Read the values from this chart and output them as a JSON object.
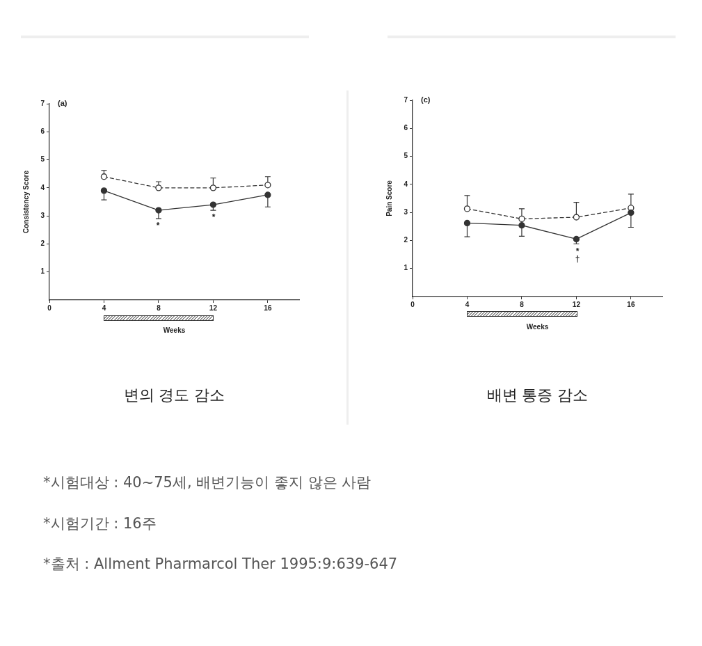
{
  "chart_data": [
    {
      "type": "line",
      "title": "(a)",
      "xlabel": "Weeks",
      "ylabel": "Consistency Score",
      "x": [
        4,
        8,
        12,
        16
      ],
      "series": [
        {
          "color": "#333333",
          "line_style": "solid",
          "values": [
            3.9,
            3.2,
            3.4,
            3.75
          ],
          "errors": [
            [
              3.57,
              3.9
            ],
            [
              2.9,
              3.2
            ],
            [
              3.2,
              3.4
            ],
            [
              3.32,
              3.75
            ]
          ]
        },
        {
          "color": "#333333",
          "line_style": "dashed",
          "values": [
            4.4,
            4.0,
            4.0,
            4.1
          ],
          "errors": [
            [
              4.4,
              4.62
            ],
            [
              4.0,
              4.22
            ],
            [
              4.0,
              4.35
            ],
            [
              4.1,
              4.4
            ]
          ]
        }
      ],
      "xlim": [
        0,
        18.3
      ],
      "xticks": [
        0,
        4,
        8,
        12,
        16
      ],
      "ylim": [
        0,
        7
      ],
      "yticks": [
        1,
        2,
        3,
        4,
        5,
        6,
        7
      ],
      "marker": "circle",
      "grid": false,
      "legend": false,
      "annotations": [
        "변의 경도 감소",
        "*",
        "*",
        "*시험대상 : 40~75세, 배변기능이 좋지 않은 사람",
        "*시험기간 : 16주",
        "*출처 : Allment Pharmarcol Ther 1995:9:639-647"
      ]
    },
    {
      "type": "line",
      "title": "(c)",
      "xlabel": "Weeks",
      "ylabel": "Pain Score",
      "x": [
        4,
        8,
        12,
        16
      ],
      "series": [
        {
          "color": "#333333",
          "line_style": "solid",
          "values": [
            2.62,
            2.54,
            2.05,
            2.99
          ],
          "errors": [
            [
              2.13,
              2.62
            ],
            [
              2.15,
              2.54
            ],
            [
              1.88,
              2.05
            ],
            [
              2.47,
              2.99
            ]
          ]
        },
        {
          "color": "#333333",
          "line_style": "dashed",
          "values": [
            3.13,
            2.77,
            2.83,
            3.16
          ],
          "errors": [
            [
              3.13,
              3.6
            ],
            [
              2.77,
              3.13
            ],
            [
              2.83,
              3.36
            ],
            [
              3.16,
              3.65
            ]
          ]
        }
      ],
      "xlim": [
        0,
        18.3
      ],
      "xticks": [
        0,
        4,
        8,
        12,
        16
      ],
      "ylim": [
        0,
        7
      ],
      "yticks": [
        1,
        2,
        3,
        4,
        5,
        6,
        7
      ],
      "marker": "circle",
      "grid": false,
      "legend": false,
      "annotations": [
        "배변 통증 감소",
        "*",
        "†"
      ]
    }
  ]
}
